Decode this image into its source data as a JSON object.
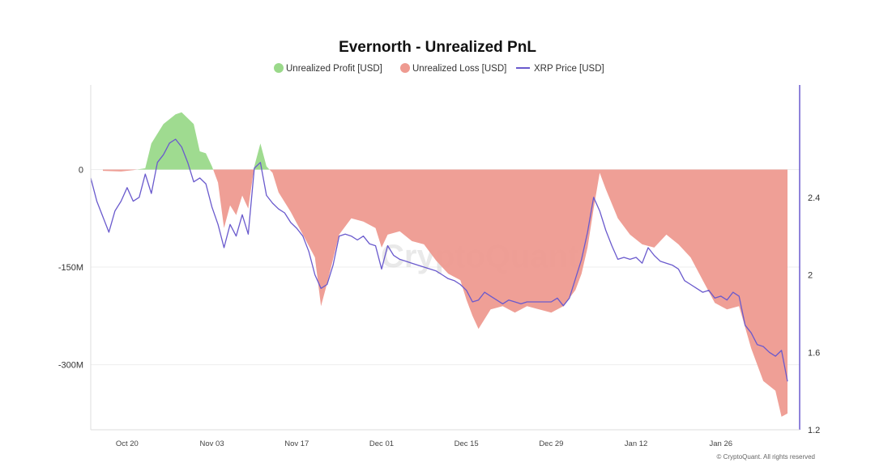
{
  "chart_data": {
    "type": "area",
    "title": "Evernorth - Unrealized PnL",
    "legend": [
      {
        "label": "Unrealized Profit [USD]",
        "color": "#9ad98a",
        "marker": "circle"
      },
      {
        "label": "Unrealized Loss [USD]",
        "color": "#ee9a90",
        "marker": "circle"
      },
      {
        "label": "XRP Price [USD]",
        "color": "#6a5acd",
        "marker": "line"
      }
    ],
    "legend_position": "top-center",
    "x_range": [
      "2025-10-14",
      "2026-02-08"
    ],
    "x_ticks": [
      {
        "date": "2025-10-20",
        "label": "Oct 20"
      },
      {
        "date": "2025-11-03",
        "label": "Nov 03"
      },
      {
        "date": "2025-11-17",
        "label": "Nov 17"
      },
      {
        "date": "2025-12-01",
        "label": "Dec 01"
      },
      {
        "date": "2025-12-15",
        "label": "Dec 15"
      },
      {
        "date": "2025-12-29",
        "label": "Dec 29"
      },
      {
        "date": "2026-01-12",
        "label": "Jan 12"
      },
      {
        "date": "2026-01-26",
        "label": "Jan 26"
      }
    ],
    "y_left": {
      "unit": "USD",
      "range": [
        -400000000,
        130000000
      ],
      "ticks": [
        {
          "value": 0,
          "label": "0"
        },
        {
          "value": -150000000,
          "label": "-150M"
        },
        {
          "value": -300000000,
          "label": "-300M"
        }
      ]
    },
    "y_right": {
      "unit": "USD",
      "range": [
        1.2,
        2.98
      ],
      "ticks": [
        {
          "value": 2.4,
          "label": "2.4"
        },
        {
          "value": 2,
          "label": "2"
        },
        {
          "value": 1.6,
          "label": "1.6"
        },
        {
          "value": 1.2,
          "label": "1.2"
        }
      ]
    },
    "grid": {
      "horizontal": true,
      "vertical": false
    },
    "series": [
      {
        "name": "Unrealized PnL [USD]",
        "axis": "left",
        "positive_color": "#9ad98a",
        "negative_color": "#ee9a90",
        "points": [
          [
            "2025-10-16",
            -2000000
          ],
          [
            "2025-10-19",
            -3000000
          ],
          [
            "2025-10-21",
            -1000000
          ],
          [
            "2025-10-23",
            2000000
          ],
          [
            "2025-10-24",
            40000000
          ],
          [
            "2025-10-26",
            70000000
          ],
          [
            "2025-10-28",
            85000000
          ],
          [
            "2025-10-29",
            88000000
          ],
          [
            "2025-10-31",
            70000000
          ],
          [
            "2025-11-01",
            28000000
          ],
          [
            "2025-11-02",
            25000000
          ],
          [
            "2025-11-03",
            5000000
          ],
          [
            "2025-11-04",
            -20000000
          ],
          [
            "2025-11-05",
            -90000000
          ],
          [
            "2025-11-06",
            -55000000
          ],
          [
            "2025-11-07",
            -70000000
          ],
          [
            "2025-11-08",
            -40000000
          ],
          [
            "2025-11-09",
            -60000000
          ],
          [
            "2025-11-10",
            5000000
          ],
          [
            "2025-11-11",
            40000000
          ],
          [
            "2025-11-12",
            5000000
          ],
          [
            "2025-11-13",
            -5000000
          ],
          [
            "2025-11-14",
            -35000000
          ],
          [
            "2025-11-16",
            -65000000
          ],
          [
            "2025-11-18",
            -100000000
          ],
          [
            "2025-11-20",
            -135000000
          ],
          [
            "2025-11-21",
            -210000000
          ],
          [
            "2025-11-22",
            -175000000
          ],
          [
            "2025-11-24",
            -100000000
          ],
          [
            "2025-11-26",
            -75000000
          ],
          [
            "2025-11-28",
            -80000000
          ],
          [
            "2025-11-30",
            -90000000
          ],
          [
            "2025-12-01",
            -120000000
          ],
          [
            "2025-12-02",
            -100000000
          ],
          [
            "2025-12-04",
            -95000000
          ],
          [
            "2025-12-06",
            -110000000
          ],
          [
            "2025-12-08",
            -115000000
          ],
          [
            "2025-12-10",
            -140000000
          ],
          [
            "2025-12-12",
            -160000000
          ],
          [
            "2025-12-14",
            -170000000
          ],
          [
            "2025-12-15",
            -200000000
          ],
          [
            "2025-12-16",
            -225000000
          ],
          [
            "2025-12-17",
            -245000000
          ],
          [
            "2025-12-19",
            -215000000
          ],
          [
            "2025-12-21",
            -210000000
          ],
          [
            "2025-12-23",
            -220000000
          ],
          [
            "2025-12-25",
            -210000000
          ],
          [
            "2025-12-27",
            -215000000
          ],
          [
            "2025-12-29",
            -220000000
          ],
          [
            "2025-12-31",
            -210000000
          ],
          [
            "2026-01-02",
            -185000000
          ],
          [
            "2026-01-03",
            -160000000
          ],
          [
            "2026-01-04",
            -120000000
          ],
          [
            "2026-01-05",
            -60000000
          ],
          [
            "2026-01-06",
            -5000000
          ],
          [
            "2026-01-07",
            -30000000
          ],
          [
            "2026-01-09",
            -75000000
          ],
          [
            "2026-01-11",
            -100000000
          ],
          [
            "2026-01-13",
            -115000000
          ],
          [
            "2026-01-15",
            -120000000
          ],
          [
            "2026-01-17",
            -100000000
          ],
          [
            "2026-01-19",
            -115000000
          ],
          [
            "2026-01-21",
            -135000000
          ],
          [
            "2026-01-23",
            -170000000
          ],
          [
            "2026-01-25",
            -205000000
          ],
          [
            "2026-01-27",
            -215000000
          ],
          [
            "2026-01-29",
            -210000000
          ],
          [
            "2026-01-31",
            -275000000
          ],
          [
            "2026-02-02",
            -325000000
          ],
          [
            "2026-02-04",
            -340000000
          ],
          [
            "2026-02-05",
            -380000000
          ],
          [
            "2026-02-06",
            -375000000
          ]
        ]
      },
      {
        "name": "XRP Price [USD]",
        "axis": "right",
        "color": "#6a5acd",
        "points": [
          [
            "2025-10-14",
            2.5
          ],
          [
            "2025-10-15",
            2.38
          ],
          [
            "2025-10-17",
            2.22
          ],
          [
            "2025-10-18",
            2.33
          ],
          [
            "2025-10-19",
            2.38
          ],
          [
            "2025-10-20",
            2.45
          ],
          [
            "2025-10-21",
            2.38
          ],
          [
            "2025-10-22",
            2.4
          ],
          [
            "2025-10-23",
            2.52
          ],
          [
            "2025-10-24",
            2.42
          ],
          [
            "2025-10-25",
            2.58
          ],
          [
            "2025-10-26",
            2.62
          ],
          [
            "2025-10-27",
            2.68
          ],
          [
            "2025-10-28",
            2.7
          ],
          [
            "2025-10-29",
            2.66
          ],
          [
            "2025-10-30",
            2.58
          ],
          [
            "2025-10-31",
            2.48
          ],
          [
            "2025-11-01",
            2.5
          ],
          [
            "2025-11-02",
            2.47
          ],
          [
            "2025-11-03",
            2.35
          ],
          [
            "2025-11-04",
            2.26
          ],
          [
            "2025-11-05",
            2.14
          ],
          [
            "2025-11-06",
            2.26
          ],
          [
            "2025-11-07",
            2.2
          ],
          [
            "2025-11-08",
            2.31
          ],
          [
            "2025-11-09",
            2.21
          ],
          [
            "2025-11-10",
            2.55
          ],
          [
            "2025-11-11",
            2.58
          ],
          [
            "2025-11-12",
            2.41
          ],
          [
            "2025-11-13",
            2.37
          ],
          [
            "2025-11-14",
            2.34
          ],
          [
            "2025-11-15",
            2.32
          ],
          [
            "2025-11-16",
            2.27
          ],
          [
            "2025-11-17",
            2.24
          ],
          [
            "2025-11-18",
            2.2
          ],
          [
            "2025-11-19",
            2.12
          ],
          [
            "2025-11-20",
            2.0
          ],
          [
            "2025-11-21",
            1.93
          ],
          [
            "2025-11-22",
            1.95
          ],
          [
            "2025-11-23",
            2.05
          ],
          [
            "2025-11-24",
            2.2
          ],
          [
            "2025-11-25",
            2.21
          ],
          [
            "2025-11-26",
            2.2
          ],
          [
            "2025-11-27",
            2.18
          ],
          [
            "2025-11-28",
            2.2
          ],
          [
            "2025-11-29",
            2.16
          ],
          [
            "2025-11-30",
            2.15
          ],
          [
            "2025-12-01",
            2.03
          ],
          [
            "2025-12-02",
            2.15
          ],
          [
            "2025-12-03",
            2.1
          ],
          [
            "2025-12-04",
            2.08
          ],
          [
            "2025-12-05",
            2.07
          ],
          [
            "2025-12-06",
            2.06
          ],
          [
            "2025-12-07",
            2.05
          ],
          [
            "2025-12-08",
            2.04
          ],
          [
            "2025-12-09",
            2.03
          ],
          [
            "2025-12-10",
            2.02
          ],
          [
            "2025-12-11",
            2.0
          ],
          [
            "2025-12-12",
            1.98
          ],
          [
            "2025-12-13",
            1.97
          ],
          [
            "2025-12-14",
            1.95
          ],
          [
            "2025-12-15",
            1.92
          ],
          [
            "2025-12-16",
            1.86
          ],
          [
            "2025-12-17",
            1.87
          ],
          [
            "2025-12-18",
            1.91
          ],
          [
            "2025-12-19",
            1.89
          ],
          [
            "2025-12-20",
            1.87
          ],
          [
            "2025-12-21",
            1.85
          ],
          [
            "2025-12-22",
            1.87
          ],
          [
            "2025-12-23",
            1.86
          ],
          [
            "2025-12-24",
            1.85
          ],
          [
            "2025-12-25",
            1.86
          ],
          [
            "2025-12-26",
            1.86
          ],
          [
            "2025-12-27",
            1.86
          ],
          [
            "2025-12-28",
            1.86
          ],
          [
            "2025-12-29",
            1.86
          ],
          [
            "2025-12-30",
            1.88
          ],
          [
            "2025-12-31",
            1.84
          ],
          [
            "2026-01-01",
            1.88
          ],
          [
            "2026-01-02",
            1.98
          ],
          [
            "2026-01-03",
            2.08
          ],
          [
            "2026-01-04",
            2.22
          ],
          [
            "2026-01-05",
            2.4
          ],
          [
            "2026-01-06",
            2.33
          ],
          [
            "2026-01-07",
            2.23
          ],
          [
            "2026-01-08",
            2.15
          ],
          [
            "2026-01-09",
            2.08
          ],
          [
            "2026-01-10",
            2.09
          ],
          [
            "2026-01-11",
            2.08
          ],
          [
            "2026-01-12",
            2.09
          ],
          [
            "2026-01-13",
            2.06
          ],
          [
            "2026-01-14",
            2.14
          ],
          [
            "2026-01-15",
            2.1
          ],
          [
            "2026-01-16",
            2.07
          ],
          [
            "2026-01-17",
            2.06
          ],
          [
            "2026-01-18",
            2.05
          ],
          [
            "2026-01-19",
            2.03
          ],
          [
            "2026-01-20",
            1.97
          ],
          [
            "2026-01-21",
            1.95
          ],
          [
            "2026-01-22",
            1.93
          ],
          [
            "2026-01-23",
            1.91
          ],
          [
            "2026-01-24",
            1.92
          ],
          [
            "2026-01-25",
            1.88
          ],
          [
            "2026-01-26",
            1.89
          ],
          [
            "2026-01-27",
            1.87
          ],
          [
            "2026-01-28",
            1.91
          ],
          [
            "2026-01-29",
            1.89
          ],
          [
            "2026-01-30",
            1.74
          ],
          [
            "2026-01-31",
            1.7
          ],
          [
            "2026-02-01",
            1.64
          ],
          [
            "2026-02-02",
            1.63
          ],
          [
            "2026-02-03",
            1.6
          ],
          [
            "2026-02-04",
            1.58
          ],
          [
            "2026-02-05",
            1.61
          ],
          [
            "2026-02-06",
            1.45
          ]
        ]
      }
    ],
    "watermark": "CryptoQuant",
    "credit": "© CryptoQuant. All rights reserved"
  }
}
